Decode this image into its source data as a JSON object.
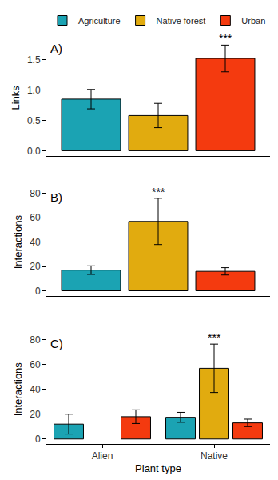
{
  "chart_data": [
    {
      "type": "bar",
      "label": "A)",
      "y_label": "Links",
      "legend": "top",
      "categories": [
        null
      ],
      "ylim": [
        -0.08,
        1.82
      ],
      "yticks": [
        {
          "value": 0,
          "label": "0.0"
        },
        {
          "value": 0.5,
          "label": "0.5"
        },
        {
          "value": 1,
          "label": "1.0"
        },
        {
          "value": 1.5,
          "label": "1.5"
        }
      ],
      "series": [
        {
          "name": "Agriculture",
          "color": "#1ba3b3",
          "values": [
            0.85
          ],
          "errors": [
            0.16
          ]
        },
        {
          "name": "Native forest",
          "color": "#e1ab0f",
          "values": [
            0.58
          ],
          "errors": [
            0.2
          ]
        },
        {
          "name": "Urban",
          "color": "#f43a0f",
          "values": [
            1.52
          ],
          "errors": [
            0.22
          ]
        }
      ],
      "annotations": [
        {
          "text": "***",
          "series": 2,
          "category": 0
        }
      ]
    },
    {
      "type": "bar",
      "label": "B)",
      "y_label": "Interactions",
      "categories": [
        null
      ],
      "ylim": [
        -4,
        84
      ],
      "yticks": [
        0,
        20,
        40,
        60,
        80
      ],
      "series": [
        {
          "name": "Agriculture",
          "color": "#1ba3b3",
          "values": [
            17
          ],
          "errors": [
            3.5
          ]
        },
        {
          "name": "Native forest",
          "color": "#e1ab0f",
          "values": [
            57
          ],
          "errors": [
            19
          ]
        },
        {
          "name": "Urban",
          "color": "#f43a0f",
          "values": [
            16
          ],
          "errors": [
            3
          ]
        }
      ],
      "annotations": [
        {
          "text": "***",
          "series": 1,
          "category": 0
        }
      ]
    },
    {
      "type": "bar",
      "label": "C)",
      "y_label": "Interactions",
      "x_label": "Plant type",
      "categories": [
        "Alien",
        "Native"
      ],
      "ylim": [
        -4,
        84
      ],
      "yticks": [
        0,
        20,
        40,
        60,
        80
      ],
      "series": [
        {
          "name": "Agriculture",
          "color": "#1ba3b3",
          "values": [
            12,
            17.5
          ],
          "errors": [
            8,
            4
          ]
        },
        {
          "name": "Native forest",
          "color": "#e1ab0f",
          "values": [
            null,
            57
          ],
          "errors": [
            null,
            19.5
          ]
        },
        {
          "name": "Urban",
          "color": "#f43a0f",
          "values": [
            18,
            13
          ],
          "errors": [
            5.5,
            3
          ]
        }
      ],
      "annotations": [
        {
          "text": "***",
          "series": 1,
          "category": 1
        }
      ]
    }
  ]
}
